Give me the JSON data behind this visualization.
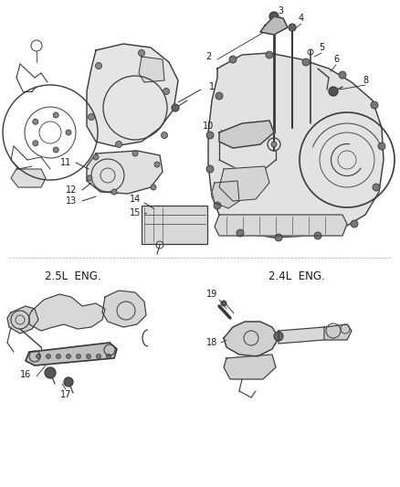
{
  "bg_color": "#ffffff",
  "fig_width": 4.38,
  "fig_height": 5.33,
  "dpi": 100,
  "text_color": "#1a1a1a",
  "line_color": "#2a2a2a",
  "drawing_color": "#3a3a3a",
  "fill_color": "#e8e8e8",
  "callout_font": 7.0,
  "section_font": 8.5
}
